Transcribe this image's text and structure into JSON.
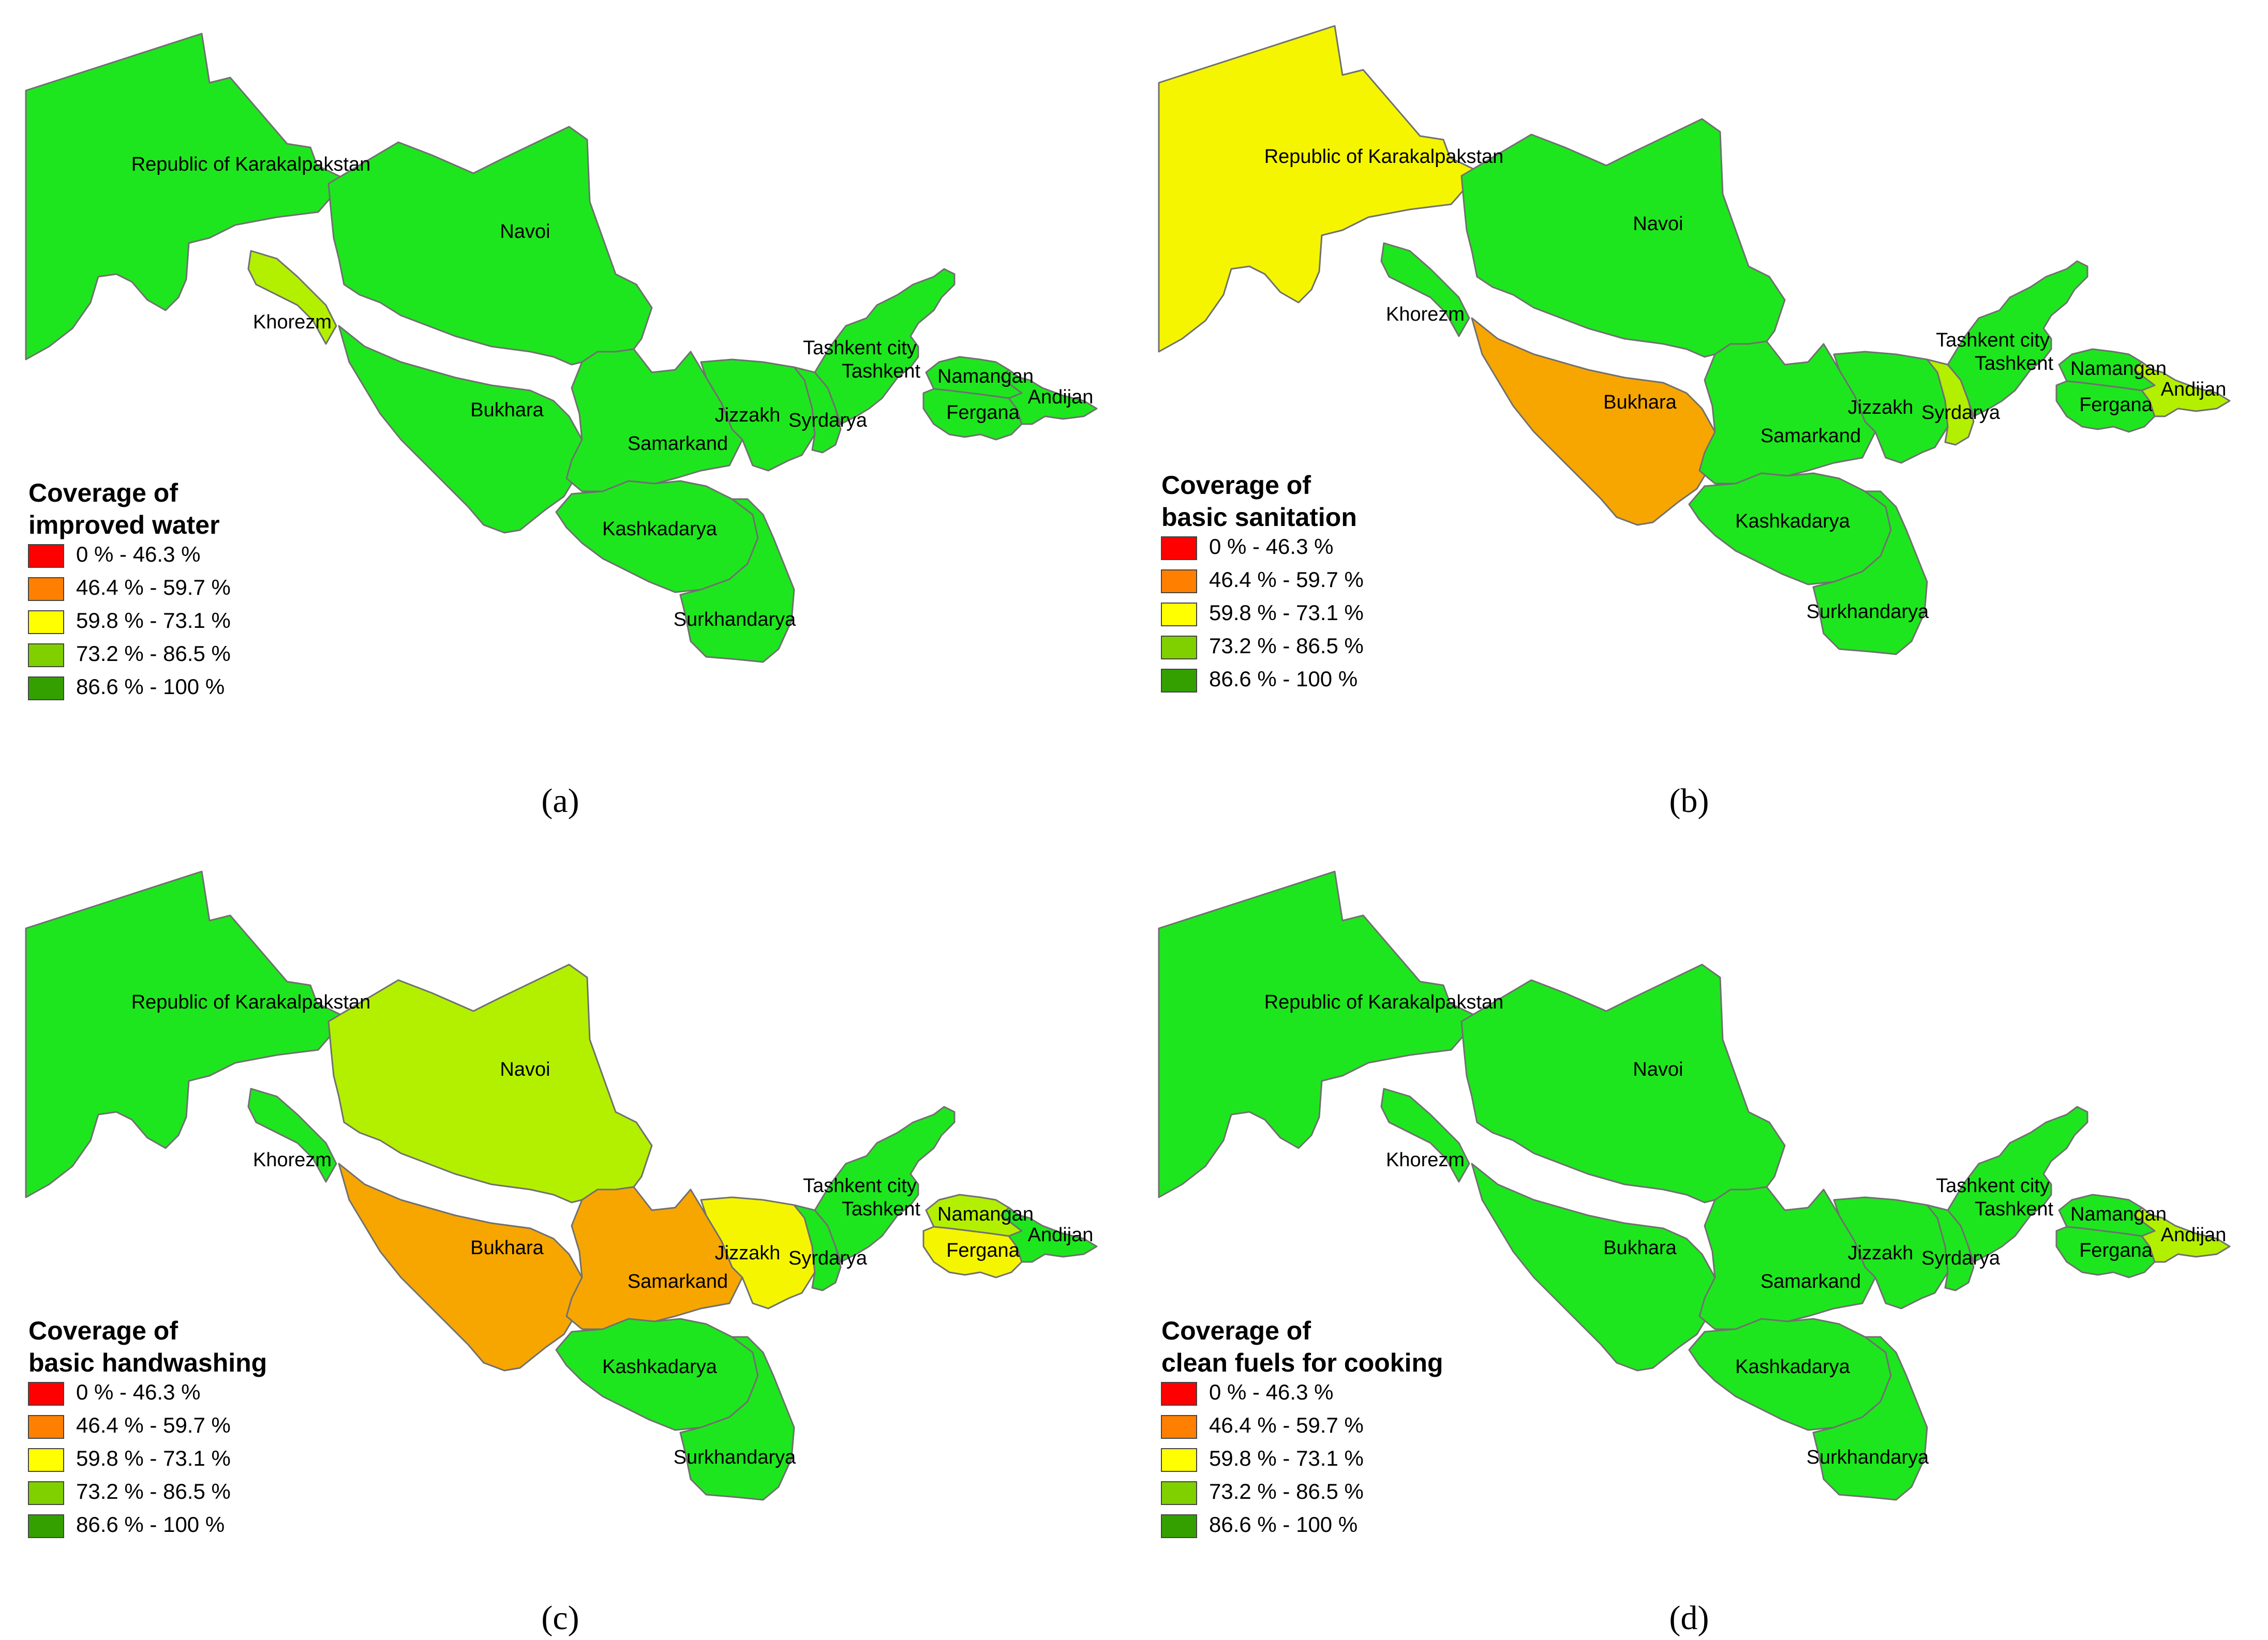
{
  "legend": {
    "classes": [
      {
        "label": "0 % - 46.3 %",
        "color": "#ff0000"
      },
      {
        "label": "46.4 % - 59.7 %",
        "color": "#ff8000"
      },
      {
        "label": "59.8 % - 73.1 %",
        "color": "#ffff00"
      },
      {
        "label": "73.2 % - 86.5 %",
        "color": "#80d000"
      },
      {
        "label": "86.6 % - 100 %",
        "color": "#33a000"
      }
    ]
  },
  "palette": {
    "bright_green": "#1ee61e",
    "light_green": "#b3f000",
    "yellow": "#f5f500",
    "orange": "#f7a600"
  },
  "region_names": {
    "karakalpakstan": "Republic of Karakalpakstan",
    "khorezm": "Khorezm",
    "navoi": "Navoi",
    "bukhara": "Bukhara",
    "samarkand": "Samarkand",
    "kashkadarya": "Kashkadarya",
    "surkhandarya": "Surkhandarya",
    "jizzakh": "Jizzakh",
    "syrdarya": "Syrdarya",
    "tashkent_city": "Tashkent city",
    "tashkent": "Tashkent",
    "namangan": "Namangan",
    "fergana": "Fergana",
    "andijan": "Andijan"
  },
  "panels": [
    {
      "caption": "(a)",
      "legend_title": [
        "Coverage of",
        "improved water"
      ],
      "fills": {
        "karakalpakstan": "bright_green",
        "khorezm": "light_green",
        "navoi": "bright_green",
        "bukhara": "bright_green",
        "samarkand": "bright_green",
        "kashkadarya": "bright_green",
        "surkhandarya": "bright_green",
        "jizzakh": "bright_green",
        "syrdarya": "bright_green",
        "tashkent_city": "bright_green",
        "tashkent": "bright_green",
        "namangan": "bright_green",
        "fergana": "bright_green",
        "andijan": "bright_green"
      }
    },
    {
      "caption": "(b)",
      "legend_title": [
        "Coverage of",
        "basic sanitation"
      ],
      "fills": {
        "karakalpakstan": "yellow",
        "khorezm": "bright_green",
        "navoi": "bright_green",
        "bukhara": "orange",
        "samarkand": "bright_green",
        "kashkadarya": "bright_green",
        "surkhandarya": "bright_green",
        "jizzakh": "bright_green",
        "syrdarya": "light_green",
        "tashkent_city": "bright_green",
        "tashkent": "bright_green",
        "namangan": "bright_green",
        "fergana": "bright_green",
        "andijan": "light_green"
      }
    },
    {
      "caption": "(c)",
      "legend_title": [
        "Coverage of",
        "basic handwashing"
      ],
      "fills": {
        "karakalpakstan": "bright_green",
        "khorezm": "bright_green",
        "navoi": "light_green",
        "bukhara": "orange",
        "samarkand": "orange",
        "kashkadarya": "bright_green",
        "surkhandarya": "bright_green",
        "jizzakh": "yellow",
        "syrdarya": "bright_green",
        "tashkent_city": "bright_green",
        "tashkent": "bright_green",
        "namangan": "light_green",
        "fergana": "yellow",
        "andijan": "bright_green"
      }
    },
    {
      "caption": "(d)",
      "legend_title": [
        "Coverage of",
        "clean fuels for cooking"
      ],
      "fills": {
        "karakalpakstan": "bright_green",
        "khorezm": "bright_green",
        "navoi": "bright_green",
        "bukhara": "bright_green",
        "samarkand": "bright_green",
        "kashkadarya": "bright_green",
        "surkhandarya": "bright_green",
        "jizzakh": "bright_green",
        "syrdarya": "bright_green",
        "tashkent_city": "bright_green",
        "tashkent": "bright_green",
        "namangan": "bright_green",
        "fergana": "bright_green",
        "andijan": "light_green"
      }
    }
  ]
}
